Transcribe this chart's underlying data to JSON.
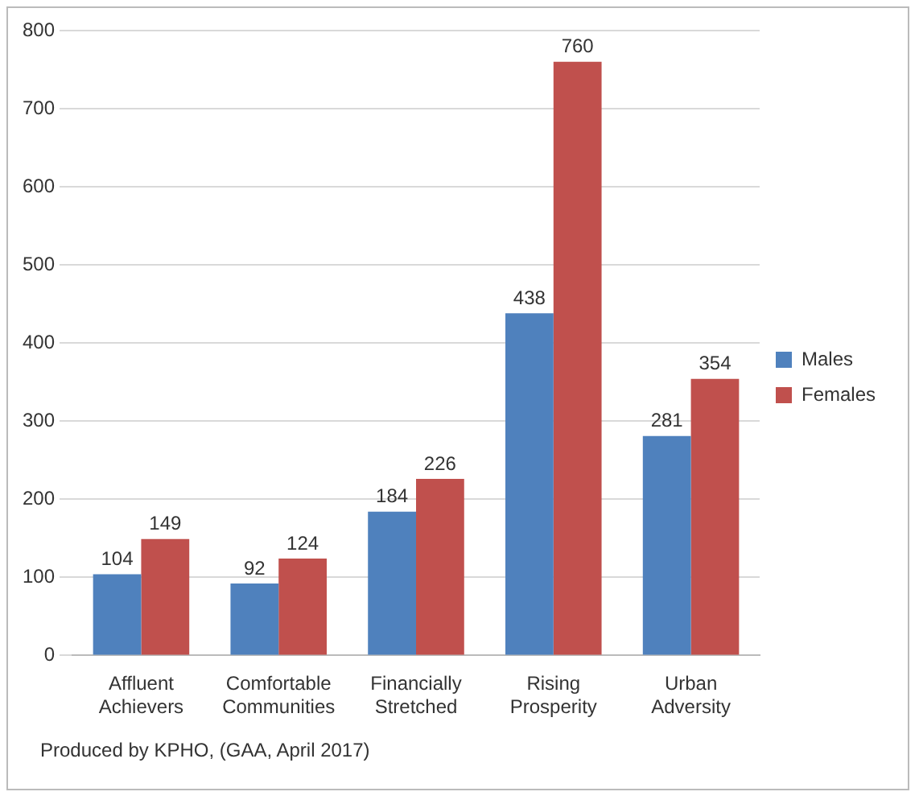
{
  "chart_data": {
    "type": "bar",
    "categories": [
      "Affluent Achievers",
      "Comfortable Communities",
      "Financially Stretched",
      "Rising Prosperity",
      "Urban Adversity"
    ],
    "series": [
      {
        "name": "Males",
        "color": "#4f81bd",
        "values": [
          104,
          92,
          184,
          438,
          281
        ]
      },
      {
        "name": "Females",
        "color": "#c0504d",
        "values": [
          149,
          124,
          226,
          760,
          354
        ]
      }
    ],
    "ylim": [
      0,
      800
    ],
    "yticks": [
      0,
      100,
      200,
      300,
      400,
      500,
      600,
      700,
      800
    ],
    "grid": "y",
    "legend": "right",
    "data_labels": true,
    "annotations": [
      "Produced by KPHO, (GAA, April 2017)"
    ]
  }
}
